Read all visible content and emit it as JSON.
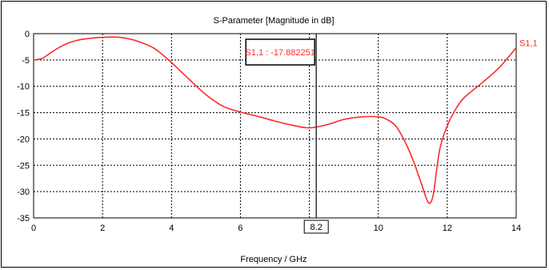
{
  "chart_data": {
    "type": "line",
    "title": "S-Parameter [Magnitude in dB]",
    "xlabel": "Frequency / GHz",
    "ylabel": "",
    "xlim": [
      0,
      14
    ],
    "ylim": [
      -35,
      0
    ],
    "xticks": [
      0,
      2,
      4,
      6,
      8,
      10,
      12,
      14
    ],
    "yticks": [
      0,
      -5,
      -10,
      -15,
      -20,
      -25,
      -30,
      -35
    ],
    "grid": true,
    "series": [
      {
        "name": "S1,1",
        "color": "#ff2a2a",
        "x": [
          0,
          0.25,
          0.5,
          0.75,
          1,
          1.25,
          1.5,
          2,
          2.5,
          3,
          3.5,
          4,
          4.5,
          5,
          5.5,
          6,
          6.5,
          7,
          7.5,
          8,
          8.5,
          9,
          9.5,
          10,
          10.25,
          10.5,
          10.75,
          11,
          11.25,
          11.4,
          11.5,
          11.6,
          11.7,
          11.8,
          12,
          12.25,
          12.5,
          13,
          13.5,
          14
        ],
        "y": [
          -5,
          -4.7,
          -3.6,
          -2.6,
          -1.8,
          -1.3,
          -1,
          -0.7,
          -0.7,
          -1.4,
          -2.8,
          -5.5,
          -8.6,
          -11.6,
          -13.8,
          -14.9,
          -15.7,
          -16.6,
          -17.4,
          -17.9,
          -17.3,
          -16.3,
          -15.8,
          -15.8,
          -16.3,
          -17.5,
          -20.2,
          -23.9,
          -28.5,
          -31.4,
          -32.2,
          -30.4,
          -25.5,
          -21.5,
          -17.5,
          -14.3,
          -12.1,
          -9.4,
          -6.5,
          -2.7
        ]
      }
    ],
    "marker": {
      "x": 8.2,
      "x_label": "8.2",
      "readout": "S1,1 : -17.882251"
    }
  }
}
